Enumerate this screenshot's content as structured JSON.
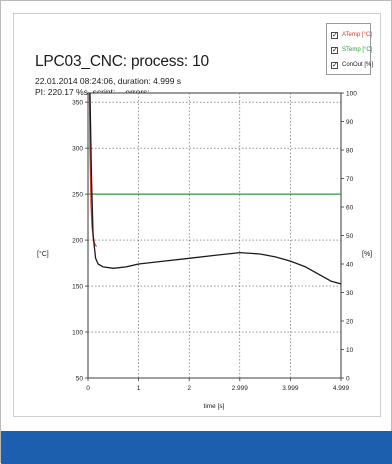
{
  "header": {
    "title": "LPC03_CNC: process: 10",
    "line1": "22.01.2014 08:24:06, duration: 4.999 s",
    "line2": "PI: 220.17 %s, script: -, errors: -"
  },
  "legend": [
    {
      "label": "ATemp [°C]",
      "color": "#e0392b",
      "checked": "✓"
    },
    {
      "label": "STemp [°C]",
      "color": "#2e9a3a",
      "checked": "✓"
    },
    {
      "label": "ConOut [%]",
      "color": "#1b1b1b",
      "checked": "✓"
    }
  ],
  "colors": {
    "frame_blue": "#1b5fae",
    "atemp": "#e0392b",
    "stemp": "#2e9a3a",
    "conout": "#1b1b1b",
    "grid": "#555555"
  },
  "chart_data": {
    "type": "line",
    "xlabel": "time [s]",
    "ylabel_left": "[°C]",
    "ylabel_right": "[%]",
    "xlim": [
      0,
      4.999
    ],
    "ylim_left": [
      50,
      360
    ],
    "ylim_right": [
      0,
      100
    ],
    "x_ticks": [
      {
        "value": 0,
        "label": "0"
      },
      {
        "value": 1,
        "label": "1"
      },
      {
        "value": 2,
        "label": "2"
      },
      {
        "value": 2.999,
        "label": "2.999"
      },
      {
        "value": 3.999,
        "label": "3.999"
      },
      {
        "value": 4.999,
        "label": "4.999"
      }
    ],
    "y_left_ticks": [
      {
        "value": 50,
        "label": "50"
      },
      {
        "value": 100,
        "label": "100"
      },
      {
        "value": 150,
        "label": "150"
      },
      {
        "value": 200,
        "label": "200"
      },
      {
        "value": 250,
        "label": "250"
      },
      {
        "value": 300,
        "label": "300"
      },
      {
        "value": 350,
        "label": "350"
      }
    ],
    "y_right_ticks": [
      {
        "value": 0,
        "label": "0"
      },
      {
        "value": 10,
        "label": "10"
      },
      {
        "value": 20,
        "label": "20"
      },
      {
        "value": 30,
        "label": "30"
      },
      {
        "value": 40,
        "label": "40"
      },
      {
        "value": 50,
        "label": "50"
      },
      {
        "value": 60,
        "label": "60"
      },
      {
        "value": 70,
        "label": "70"
      },
      {
        "value": 80,
        "label": "80"
      },
      {
        "value": 90,
        "label": "90"
      },
      {
        "value": 100,
        "label": "100"
      }
    ],
    "grid": true,
    "legend_position": "top-right",
    "series": [
      {
        "name": "ATemp [°C]",
        "axis": "left",
        "color": "#e0392b",
        "x": [
          0.03,
          0.04,
          0.06,
          0.08,
          0.1,
          0.12,
          0.14,
          0.17
        ],
        "y": [
          360,
          300,
          240,
          215,
          205,
          198,
          195,
          193
        ]
      },
      {
        "name": "STemp [°C]",
        "axis": "left",
        "color": "#2e9a3a",
        "x": [
          0,
          0.05,
          0.5,
          1,
          2,
          3,
          4,
          4.999
        ],
        "y": [
          250,
          250,
          250,
          250,
          250,
          250,
          250,
          250
        ]
      },
      {
        "name": "ConOut [%]",
        "axis": "right",
        "color": "#1b1b1b",
        "x": [
          0.04,
          0.07,
          0.1,
          0.15,
          0.2,
          0.3,
          0.5,
          0.75,
          1,
          1.5,
          2,
          2.5,
          2.999,
          3.4,
          3.7,
          3.999,
          4.3,
          4.6,
          4.8,
          4.999
        ],
        "y": [
          100,
          70,
          50,
          42,
          40,
          39,
          38.5,
          39,
          40,
          41,
          42,
          43,
          44,
          43.5,
          42.5,
          41,
          39,
          36,
          34,
          33
        ]
      }
    ]
  }
}
